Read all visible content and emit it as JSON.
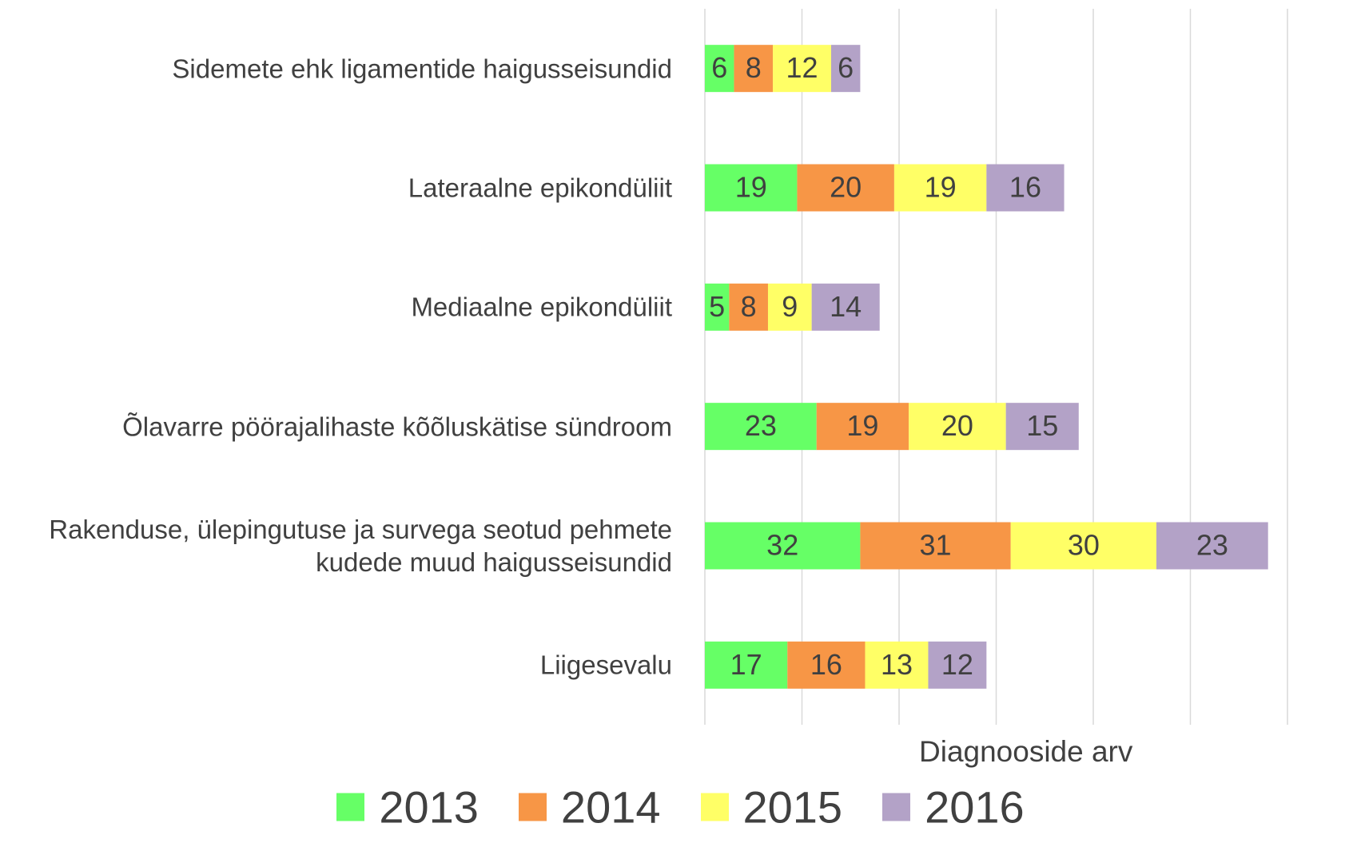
{
  "chart_data": {
    "type": "stacked_bar_horizontal",
    "categories": [
      "Sidemete ehk ligamentide haigusseisundid",
      "Lateraalne epikondüliit",
      "Mediaalne epikondüliit",
      "Õlavarre pöörajalihaste kõõluskätise sündroom",
      "Rakenduse, ülepingutuse ja survega seotud pehmete kudede muud haigusseisundid",
      "Liigesevalu"
    ],
    "series": [
      {
        "name": "2013",
        "color": "#66ff66",
        "values": [
          6,
          19,
          5,
          23,
          32,
          17
        ]
      },
      {
        "name": "2014",
        "color": "#f79646",
        "values": [
          8,
          20,
          8,
          19,
          31,
          16
        ]
      },
      {
        "name": "2015",
        "color": "#ffff66",
        "values": [
          12,
          19,
          9,
          20,
          30,
          13
        ]
      },
      {
        "name": "2016",
        "color": "#b3a2c7",
        "values": [
          6,
          16,
          14,
          15,
          23,
          12
        ]
      }
    ],
    "x_label": "Diagnooside arv",
    "xlim": [
      0,
      120
    ],
    "xticks": [
      0,
      20,
      40,
      60,
      80,
      100,
      120
    ],
    "grid": true,
    "legend": "bottom"
  }
}
